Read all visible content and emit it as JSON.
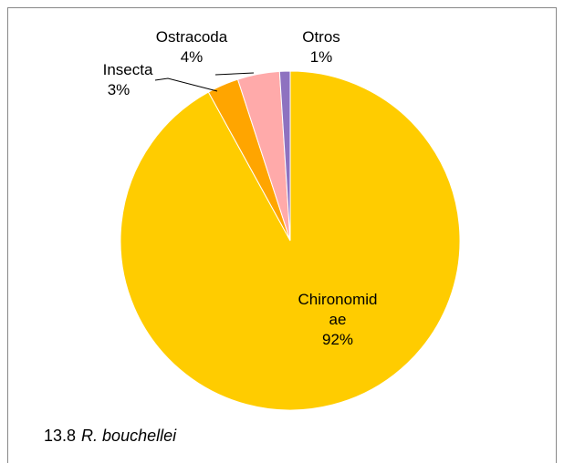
{
  "chart_data": {
    "type": "pie",
    "categories": [
      "Chironomidae",
      "Insecta",
      "Ostracoda",
      "Otros"
    ],
    "values": [
      92,
      3,
      4,
      1
    ],
    "value_labels": [
      "92%",
      "3%",
      "4%",
      "1%"
    ],
    "colors": [
      "#FFCC00",
      "#FFA500",
      "#FFAAAA",
      "#8E72C0"
    ],
    "caption": {
      "number": "13.8",
      "name": "R. bouchellei"
    }
  }
}
